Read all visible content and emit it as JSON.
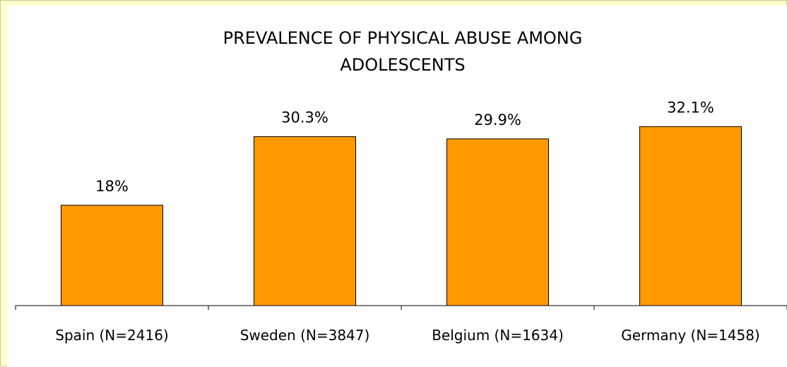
{
  "chart_data": {
    "type": "bar",
    "title_lines": [
      "PREVALENCE OF PHYSICAL ABUSE AMONG",
      "ADOLESCENTS"
    ],
    "categories": [
      "Spain (N=2416)",
      "Sweden (N=3847)",
      "Belgium (N=1634)",
      "Germany (N=1458)"
    ],
    "values": [
      18,
      30.3,
      29.9,
      32.1
    ],
    "data_labels": [
      "18%",
      "30.3%",
      "29.9%",
      "32.1%"
    ],
    "bar_color": "#ff9900",
    "bar_edge_color": "#000000",
    "background_color": "#ffffcc",
    "ylim": [
      0,
      40
    ],
    "grid": false,
    "legend": "none"
  }
}
